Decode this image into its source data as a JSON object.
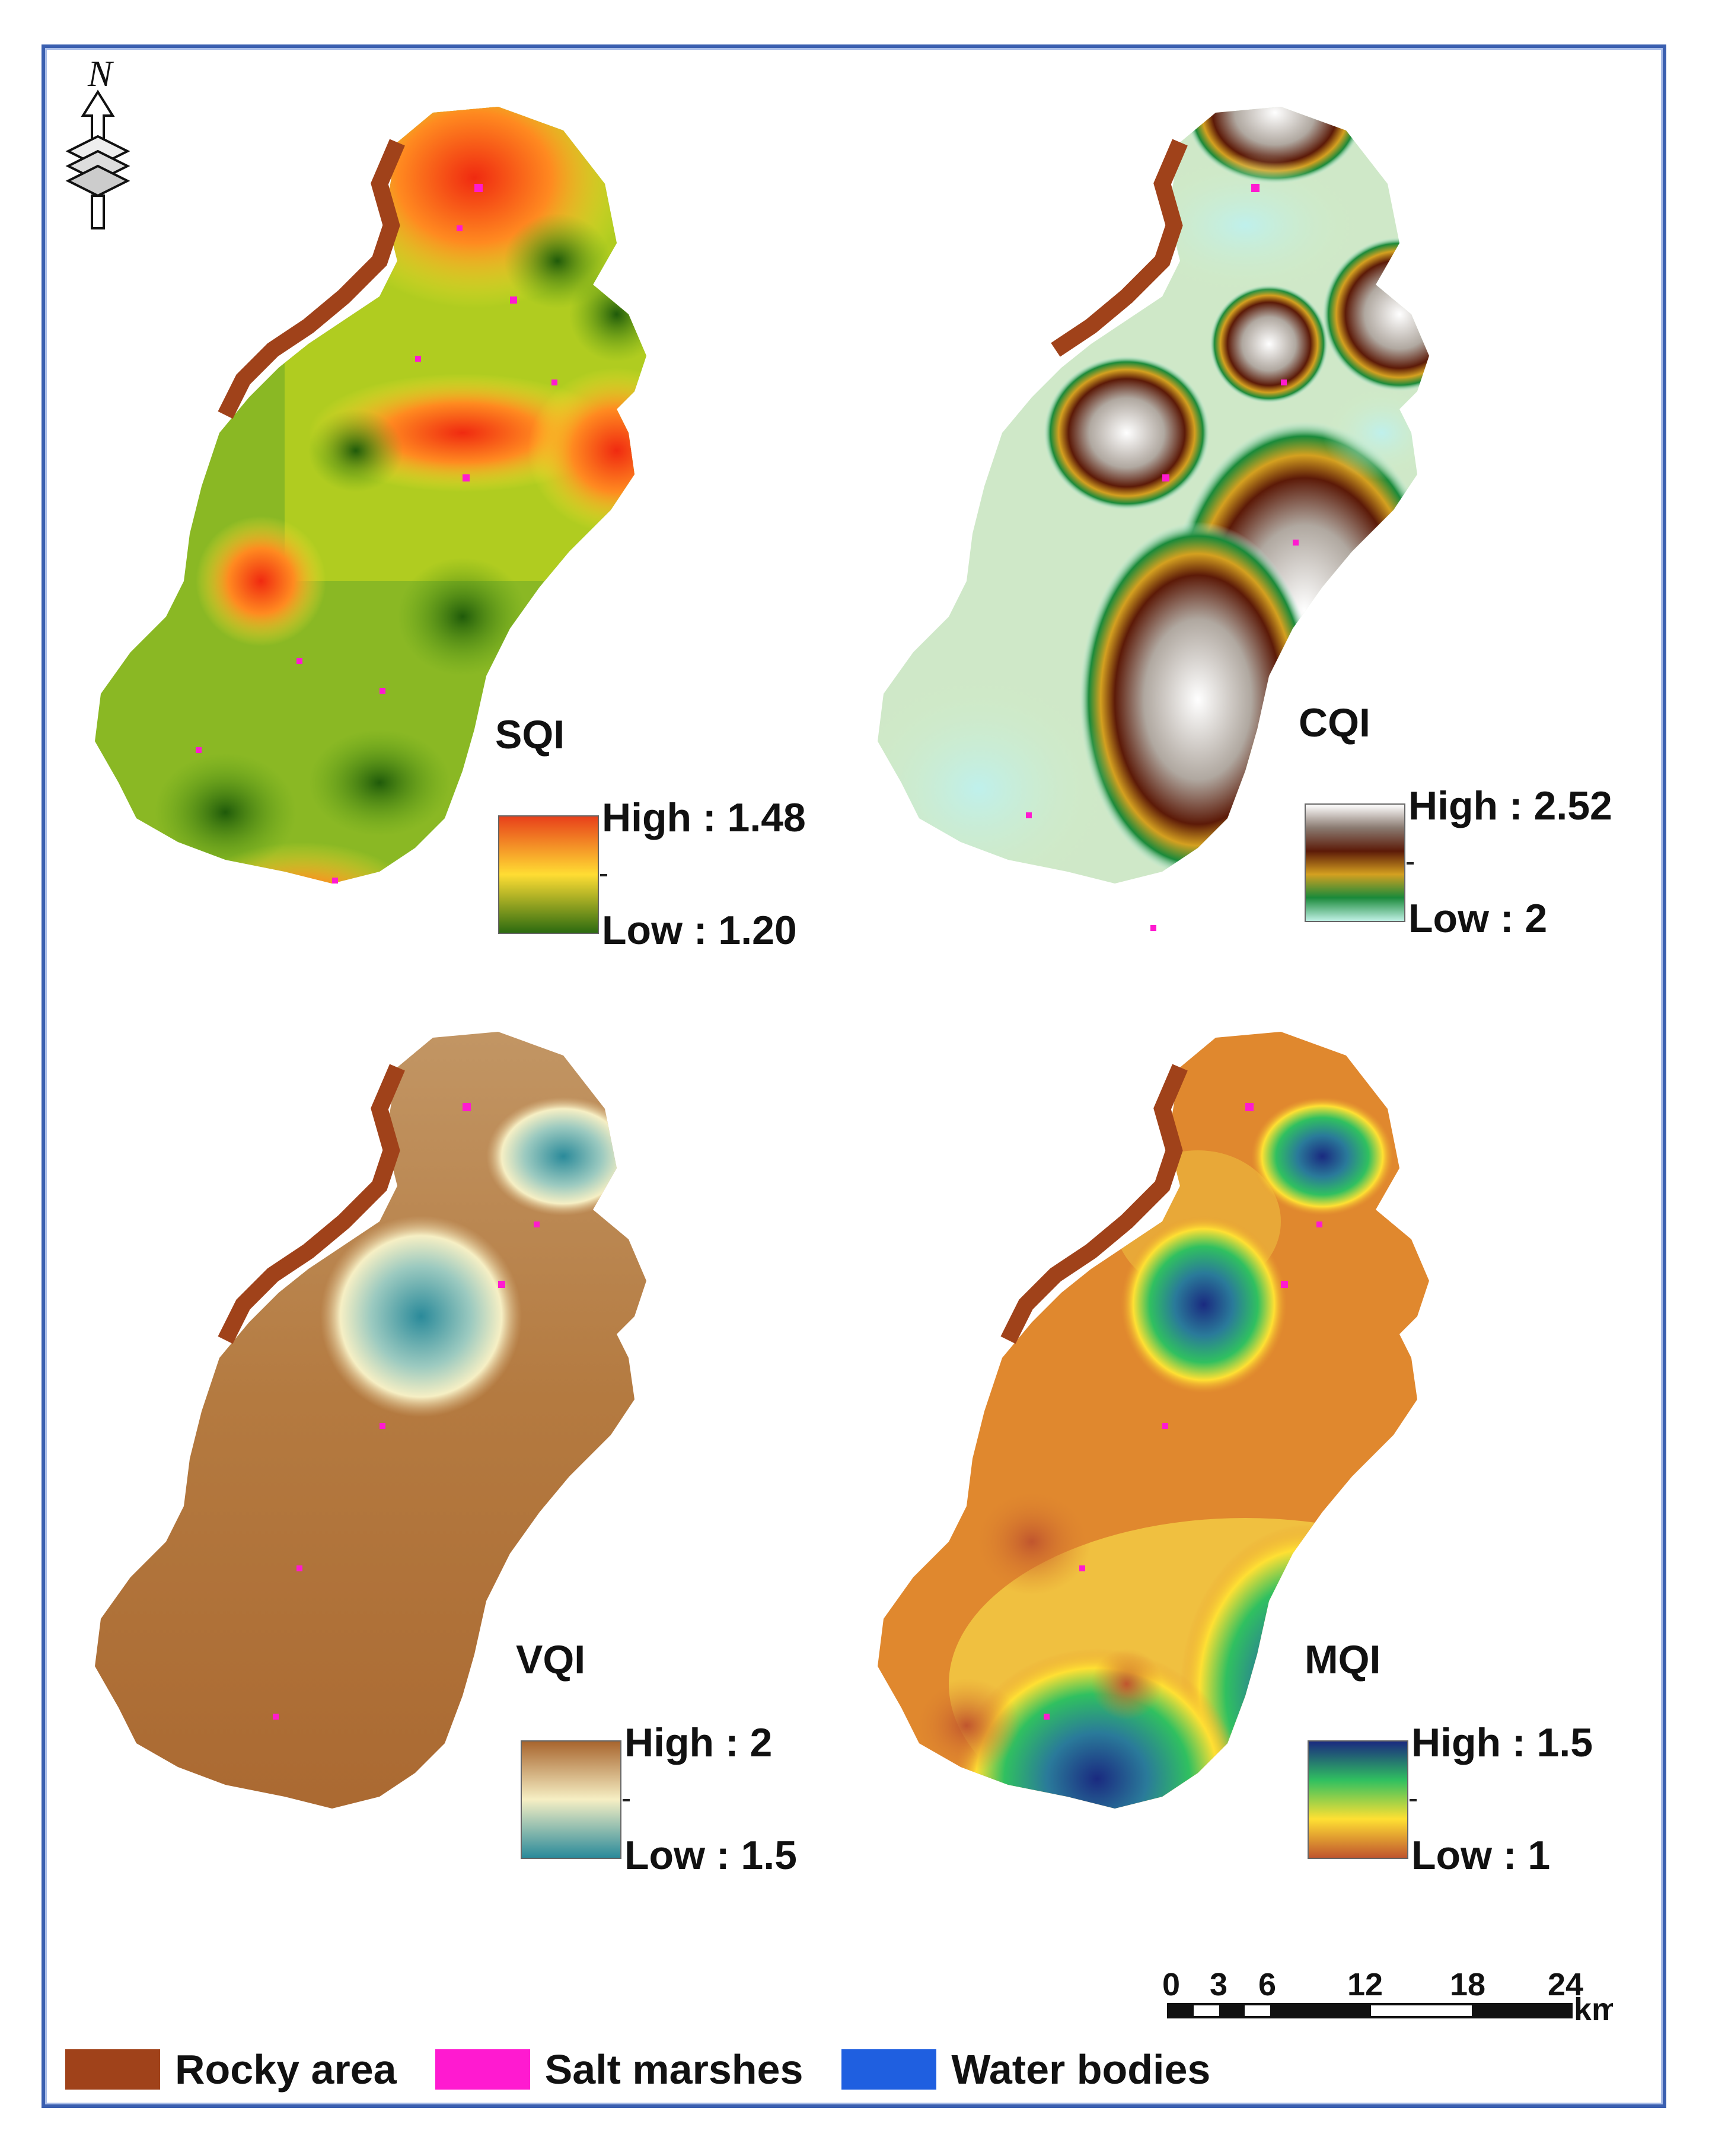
{
  "panels": [
    {
      "index": "SQI",
      "high": "High : 1.48",
      "low": "Low : 1.20",
      "ramp": [
        "#e8401a",
        "#ffdd33",
        "#2d6b10"
      ]
    },
    {
      "index": "CQI",
      "high": "High : 2.52",
      "low": "Low : 2",
      "ramp": [
        "#ffffff",
        "#5c1a08",
        "#d4a020",
        "#1a8a3a",
        "#bff0e4"
      ]
    },
    {
      "index": "VQI",
      "high": "High : 2",
      "low": "Low : 1.5",
      "ramp": [
        "#a8652e",
        "#f6efc4",
        "#2a8a9a"
      ]
    },
    {
      "index": "MQI",
      "high": "High : 1.5",
      "low": "Low : 1",
      "ramp": [
        "#1a2a80",
        "#30c060",
        "#ffe033",
        "#c0552e"
      ]
    }
  ],
  "north_arrow": {
    "label": "N"
  },
  "scale_bar": {
    "ticks": [
      "0",
      "3",
      "6",
      "12",
      "18",
      "24"
    ],
    "unit": "km"
  },
  "legend": [
    {
      "label": "Rocky area",
      "color": "#a0421a"
    },
    {
      "label": "Salt marshes",
      "color": "#ff1ad0"
    },
    {
      "label": "Water bodies",
      "color": "#1f5fe0"
    }
  ]
}
